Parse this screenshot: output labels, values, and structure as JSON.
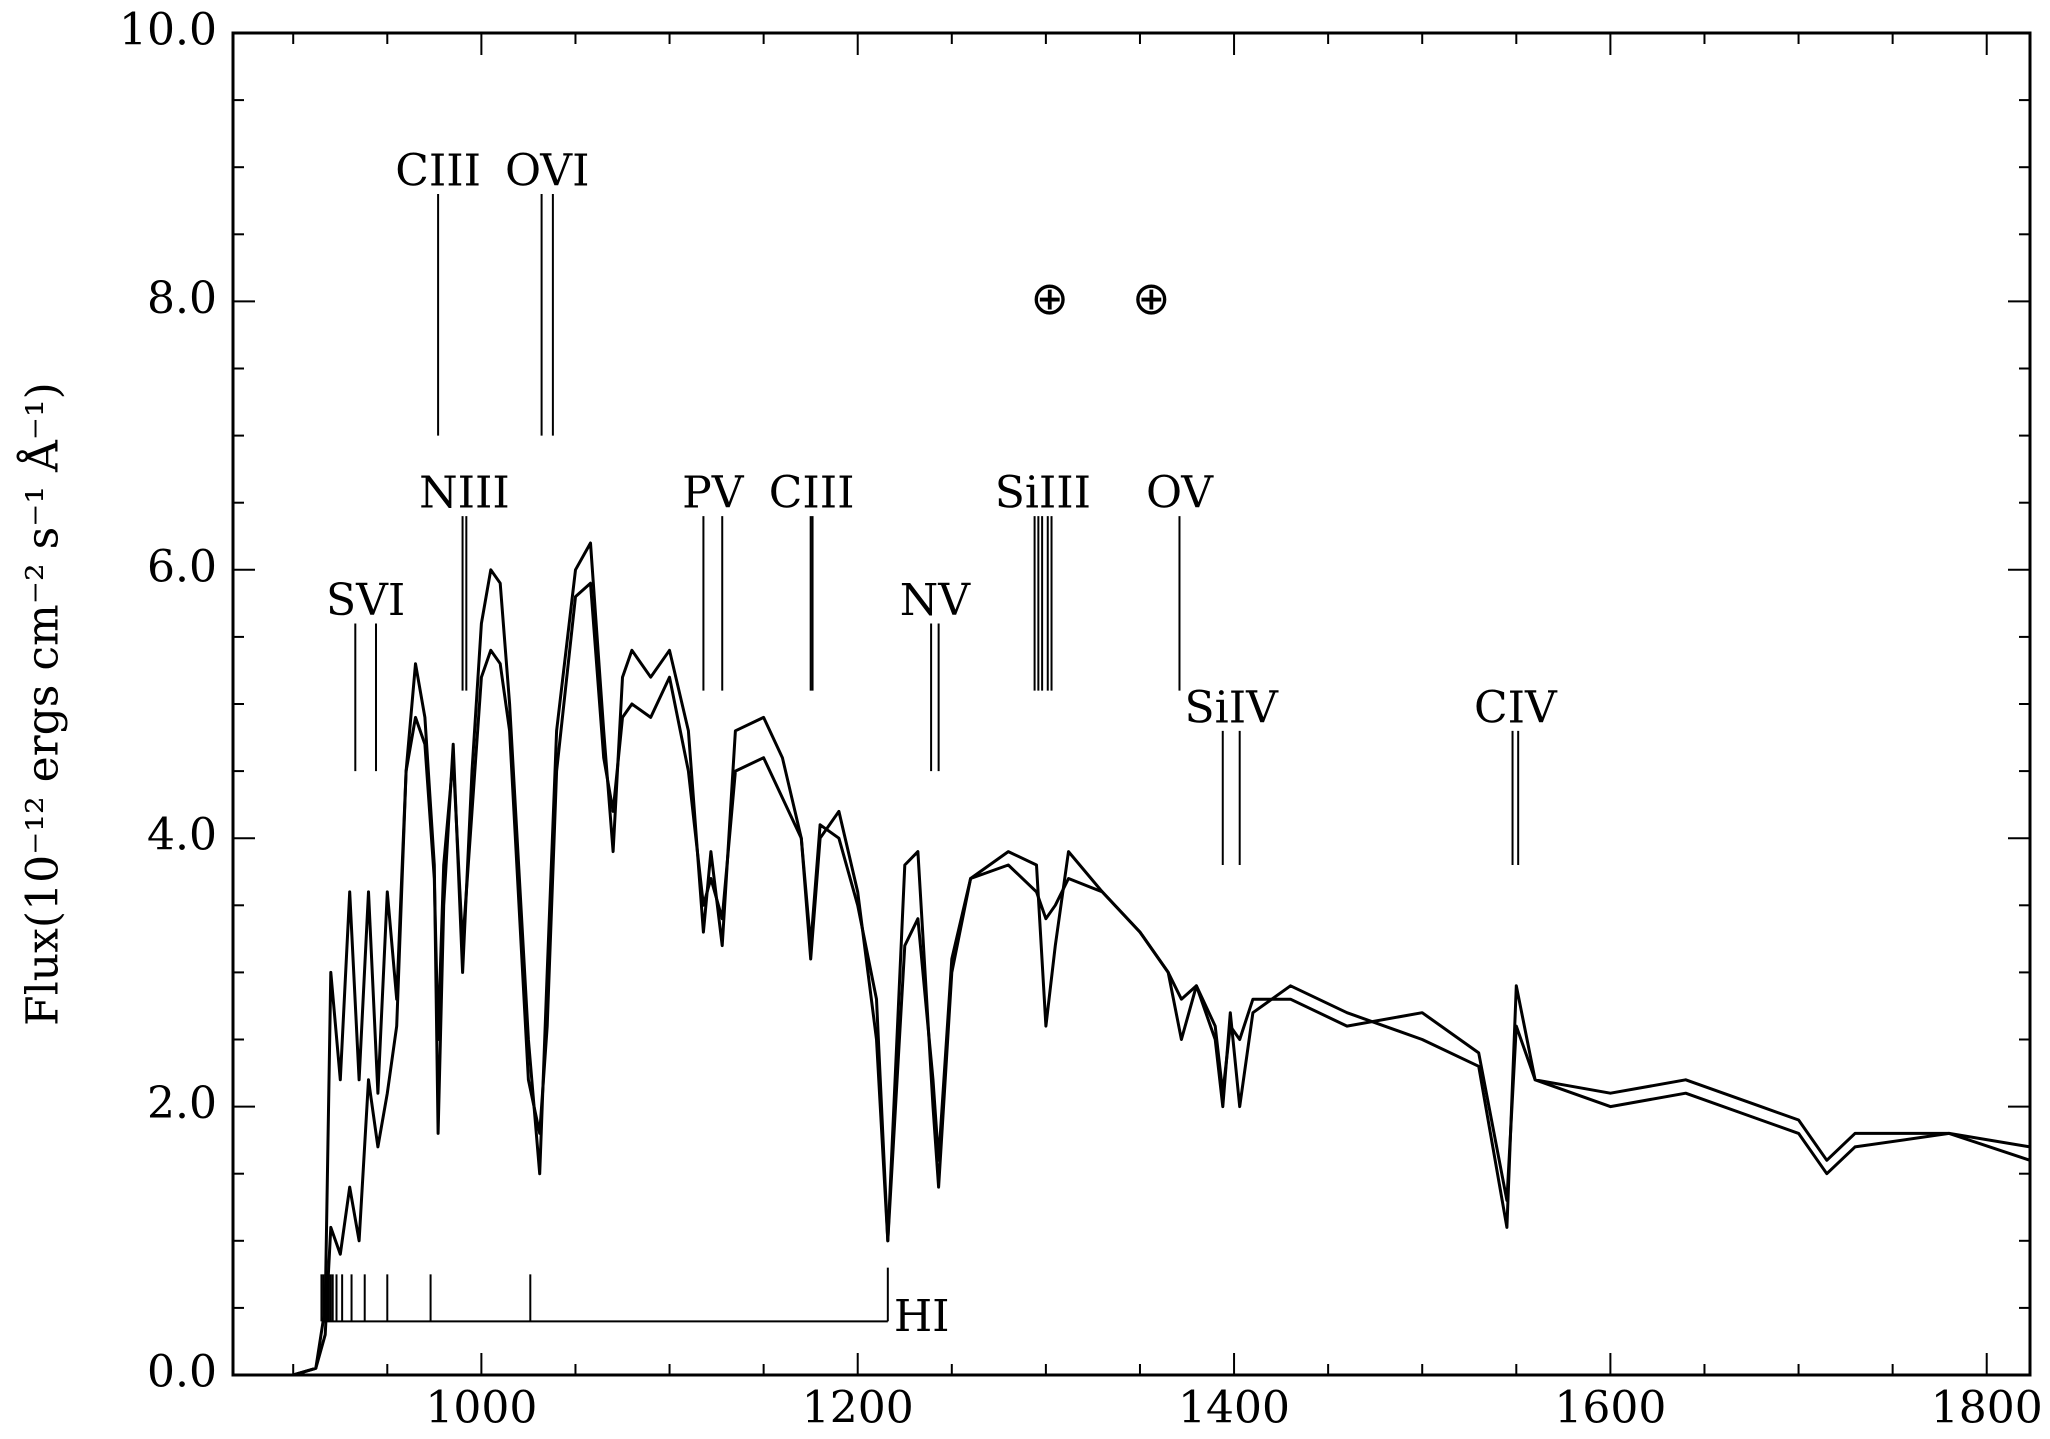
{
  "chart_data": {
    "type": "line",
    "ylabel": "Flux(10⁻¹² ergs cm⁻² s⁻¹ Å⁻¹)",
    "xlim": [
      868,
      1823
    ],
    "ylim": [
      0,
      10
    ],
    "xticks": [
      1000,
      1200,
      1400,
      1600,
      1800
    ],
    "xminorticks": [
      900,
      950,
      1050,
      1100,
      1150,
      1250,
      1300,
      1350,
      1450,
      1500,
      1550,
      1650,
      1700,
      1750
    ],
    "yticks": [
      {
        "value": 0,
        "label": "0.0"
      },
      {
        "value": 2,
        "label": "2.0"
      },
      {
        "value": 4,
        "label": "4.0"
      },
      {
        "value": 6,
        "label": "6.0"
      },
      {
        "value": 8,
        "label": "8.0"
      },
      {
        "value": 10,
        "label": "10.0"
      }
    ],
    "yminorticks": [
      0.5,
      1,
      1.5,
      2.5,
      3,
      3.5,
      4.5,
      5,
      5.5,
      6.5,
      7,
      7.5,
      8.5,
      9,
      9.5
    ],
    "x": [
      870,
      900,
      912,
      917,
      920,
      925,
      930,
      935,
      940,
      945,
      950,
      955,
      960,
      965,
      970,
      975,
      977,
      980,
      985,
      990,
      995,
      1000,
      1005,
      1010,
      1015,
      1025,
      1031,
      1035,
      1040,
      1050,
      1058,
      1065,
      1070,
      1075,
      1080,
      1090,
      1100,
      1110,
      1118,
      1122,
      1128,
      1135,
      1150,
      1160,
      1170,
      1175,
      1180,
      1190,
      1200,
      1210,
      1216,
      1225,
      1232,
      1240,
      1243,
      1250,
      1260,
      1280,
      1295,
      1300,
      1305,
      1312,
      1330,
      1350,
      1365,
      1372,
      1380,
      1390,
      1394,
      1398,
      1403,
      1410,
      1430,
      1460,
      1500,
      1530,
      1545,
      1550,
      1560,
      1600,
      1640,
      1680,
      1700,
      1715,
      1730,
      1780,
      1823
    ],
    "series": [
      {
        "color": "#000000",
        "values": [
          0,
          0,
          0.05,
          0.5,
          3.0,
          2.2,
          3.6,
          2.2,
          3.6,
          2.1,
          3.6,
          2.8,
          4.5,
          5.3,
          4.9,
          3.8,
          1.8,
          3.5,
          4.7,
          3.0,
          4.5,
          5.6,
          6.0,
          5.9,
          5.0,
          2.5,
          1.5,
          3.0,
          4.8,
          6.0,
          6.2,
          4.8,
          3.9,
          5.2,
          5.4,
          5.2,
          5.4,
          4.8,
          3.3,
          3.9,
          3.2,
          4.8,
          4.9,
          4.6,
          4.0,
          3.1,
          4.0,
          4.2,
          3.6,
          2.5,
          1.0,
          3.8,
          3.9,
          2.0,
          1.4,
          3.0,
          3.7,
          3.9,
          3.8,
          2.6,
          3.2,
          3.9,
          3.6,
          3.3,
          3.0,
          2.5,
          2.9,
          2.5,
          2.0,
          2.7,
          2.0,
          2.7,
          2.9,
          2.7,
          2.5,
          2.3,
          1.1,
          2.9,
          2.2,
          2.1,
          2.2,
          2.0,
          1.9,
          1.6,
          1.8,
          1.8,
          1.7
        ]
      },
      {
        "color": "#000000",
        "values": [
          0,
          0,
          0.05,
          0.3,
          1.1,
          0.9,
          1.4,
          1.0,
          2.2,
          1.7,
          2.1,
          2.6,
          4.5,
          4.9,
          4.7,
          3.7,
          2.5,
          3.8,
          4.6,
          3.2,
          4.2,
          5.2,
          5.4,
          5.3,
          4.8,
          2.2,
          1.8,
          2.6,
          4.5,
          5.8,
          5.9,
          4.6,
          4.2,
          4.9,
          5.0,
          4.9,
          5.2,
          4.5,
          3.5,
          3.7,
          3.4,
          4.5,
          4.6,
          4.3,
          4.0,
          3.2,
          4.1,
          4.0,
          3.5,
          2.8,
          1.0,
          3.2,
          3.4,
          2.2,
          1.6,
          3.1,
          3.7,
          3.8,
          3.6,
          3.4,
          3.5,
          3.7,
          3.6,
          3.3,
          3.0,
          2.8,
          2.9,
          2.6,
          2.1,
          2.6,
          2.5,
          2.8,
          2.8,
          2.6,
          2.7,
          2.4,
          1.3,
          2.6,
          2.2,
          2.0,
          2.1,
          1.9,
          1.8,
          1.5,
          1.7,
          1.8,
          1.6
        ]
      }
    ],
    "annotations": [
      {
        "label": "SVI",
        "lines": [
          933,
          944
        ],
        "range": [
          4.5,
          5.6
        ]
      },
      {
        "label": "CIII",
        "lines": [
          977
        ],
        "range": [
          7.0,
          8.8
        ]
      },
      {
        "label": "OVI",
        "lines": [
          1032,
          1038
        ],
        "range": [
          7.0,
          8.8
        ]
      },
      {
        "label": "NIII",
        "lines": [
          990,
          992
        ],
        "range": [
          5.1,
          6.4
        ]
      },
      {
        "label": "PV",
        "lines": [
          1118,
          1128
        ],
        "range": [
          5.1,
          6.4
        ]
      },
      {
        "label": "CIII",
        "lines": [
          1175,
          1176
        ],
        "range": [
          5.1,
          6.4
        ]
      },
      {
        "label": "NV",
        "lines": [
          1239,
          1243
        ],
        "range": [
          4.5,
          5.6
        ]
      },
      {
        "label": "SiIII",
        "lines": [
          1294,
          1296,
          1298,
          1301,
          1303
        ],
        "range": [
          5.1,
          6.4
        ]
      },
      {
        "label": "OV",
        "lines": [
          1371
        ],
        "range": [
          5.1,
          6.4
        ]
      },
      {
        "label": "SiIV",
        "lines": [
          1394,
          1403
        ],
        "range": [
          3.8,
          4.8
        ]
      },
      {
        "label": "CIV",
        "lines": [
          1548,
          1551
        ],
        "range": [
          3.8,
          4.8
        ]
      }
    ],
    "hi_series": {
      "label": "HI",
      "lines": [
        1216,
        1026,
        973,
        950,
        938,
        931,
        926,
        923,
        921,
        920,
        919,
        918,
        917,
        916,
        915
      ],
      "y": 0.4,
      "top": 0.75
    },
    "earth_markers": {
      "label": "⊕",
      "x": [
        1302,
        1356
      ],
      "y": 8.0
    }
  }
}
